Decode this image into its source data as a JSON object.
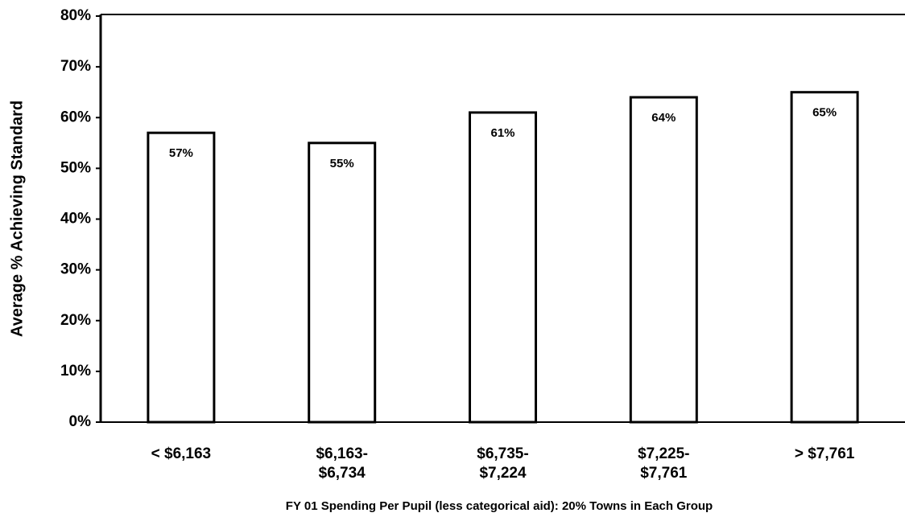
{
  "chart_data": {
    "type": "bar",
    "x_label": "FY 01 Spending Per Pupil (less categorical aid): 20% Towns in Each Group",
    "y_label": "Average % Achieving Standard",
    "categories": [
      [
        "< $6,163"
      ],
      [
        "$6,163-",
        "$6,734"
      ],
      [
        "$6,735-",
        "$7,224"
      ],
      [
        "$7,225-",
        "$7,761"
      ],
      [
        "> $7,761"
      ]
    ],
    "values": [
      57,
      55,
      61,
      64,
      65
    ],
    "value_labels": [
      "57%",
      "55%",
      "61%",
      "64%",
      "65%"
    ],
    "color": "#ffffff",
    "ylim": [
      0,
      80
    ],
    "yticks": [
      {
        "value": 0,
        "label": "0%"
      },
      {
        "value": 10,
        "label": "10%"
      },
      {
        "value": 20,
        "label": "20%"
      },
      {
        "value": 30,
        "label": "30%"
      },
      {
        "value": 40,
        "label": "40%"
      },
      {
        "value": 50,
        "label": "50%"
      },
      {
        "value": 60,
        "label": "60%"
      },
      {
        "value": 70,
        "label": "70%"
      },
      {
        "value": 80,
        "label": "80%"
      }
    ],
    "grid": false
  }
}
